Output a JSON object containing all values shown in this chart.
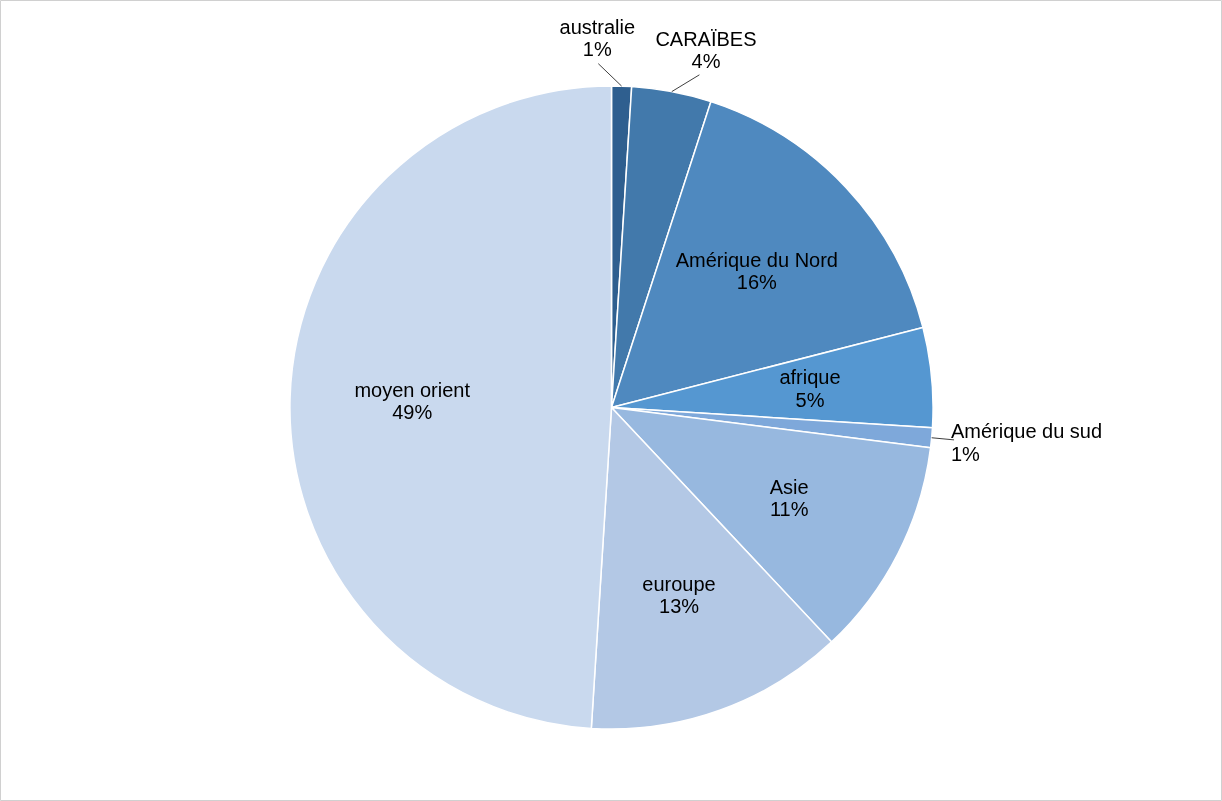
{
  "chart_data": {
    "type": "pie",
    "categories": [
      "australie",
      "CARAÏBES",
      "Amérique du Nord",
      "afrique",
      "Amérique du sud",
      "Asie",
      "euroupe",
      "moyen orient"
    ],
    "values": [
      1,
      4,
      16,
      5,
      1,
      11,
      13,
      49
    ],
    "value_labels": [
      "1%",
      "4%",
      "16%",
      "5%",
      "1%",
      "11%",
      "13%",
      "49%"
    ],
    "colors": [
      "#2f5f8f",
      "#4279ab",
      "#4f89bf",
      "#5597d1",
      "#7ea8da",
      "#97b8df",
      "#b3c8e5",
      "#c9d9ee"
    ]
  }
}
